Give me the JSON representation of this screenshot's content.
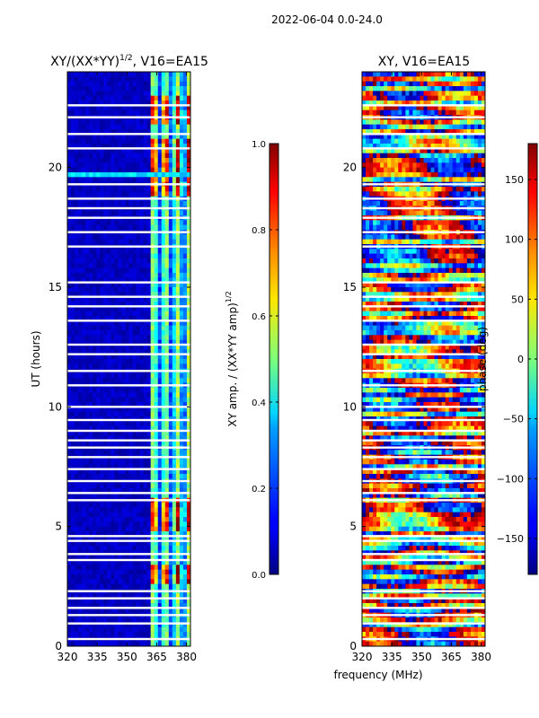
{
  "figure": {
    "suptitle": "2022-06-04 0.0-24.0",
    "shared_xlabel": "frequency (MHz)"
  },
  "chart_data": [
    {
      "type": "heatmap",
      "title": "XY/(XX*YY)",
      "title_exponent": "1/2",
      "title_suffix": ", V16=EA15",
      "xlabel": "",
      "ylabel": "UT (hours)",
      "xlim": [
        320,
        382
      ],
      "ylim": [
        0,
        24
      ],
      "xticks": [
        320,
        335,
        350,
        365,
        380
      ],
      "yticks": [
        0,
        5,
        10,
        15,
        20
      ],
      "colorbar": {
        "label": "XY amp. / (XX*YY amp)",
        "label_exponent": "1/2",
        "range": [
          0.0,
          1.0
        ],
        "ticks": [
          "0.0",
          "0.2",
          "0.4",
          "0.6",
          "0.8",
          "1.0"
        ],
        "tick_values": [
          0.0,
          0.2,
          0.4,
          0.6,
          0.8,
          1.0
        ],
        "colormap": "jet"
      },
      "flagged_hours": [
        0.3,
        0.95,
        1.3,
        1.6,
        2.0,
        2.3,
        3.6,
        3.85,
        4.4,
        4.6,
        6.1,
        6.4,
        6.9,
        7.4,
        7.9,
        8.3,
        8.6,
        9.0,
        9.45,
        10.0,
        10.9,
        11.5,
        12.2,
        12.6,
        13.6,
        14.2,
        14.6,
        15.2,
        16.7,
        17.3,
        17.9,
        18.3,
        18.7,
        19.3,
        20.8,
        21.4,
        22.1,
        22.6
      ]
    },
    {
      "type": "heatmap",
      "title": "XY, V16=EA15",
      "xlabel": "frequency (MHz)",
      "ylabel": "",
      "xlim": [
        320,
        382
      ],
      "ylim": [
        0,
        24
      ],
      "xticks": [
        320,
        335,
        350,
        365,
        380
      ],
      "yticks": [
        0,
        5,
        10,
        15,
        20
      ],
      "colorbar": {
        "label": "phase (deg)",
        "range": [
          -180,
          180
        ],
        "ticks": [
          "−150",
          "−100",
          "−50",
          "0",
          "50",
          "100",
          "150"
        ],
        "tick_values": [
          -150,
          -100,
          -50,
          0,
          50,
          100,
          150
        ],
        "colormap": "jet"
      },
      "flagged_hours": [
        0.3,
        0.95,
        1.3,
        1.6,
        2.0,
        2.3,
        3.6,
        3.85,
        4.4,
        4.6,
        6.1,
        6.4,
        6.9,
        7.4,
        7.9,
        8.3,
        8.6,
        9.0,
        9.45,
        10.0,
        10.9,
        11.5,
        12.2,
        12.6,
        13.6,
        14.2,
        14.6,
        15.2,
        16.7,
        17.3,
        17.9,
        18.3,
        18.7,
        19.3,
        20.8,
        21.4,
        22.1,
        22.6
      ]
    }
  ]
}
